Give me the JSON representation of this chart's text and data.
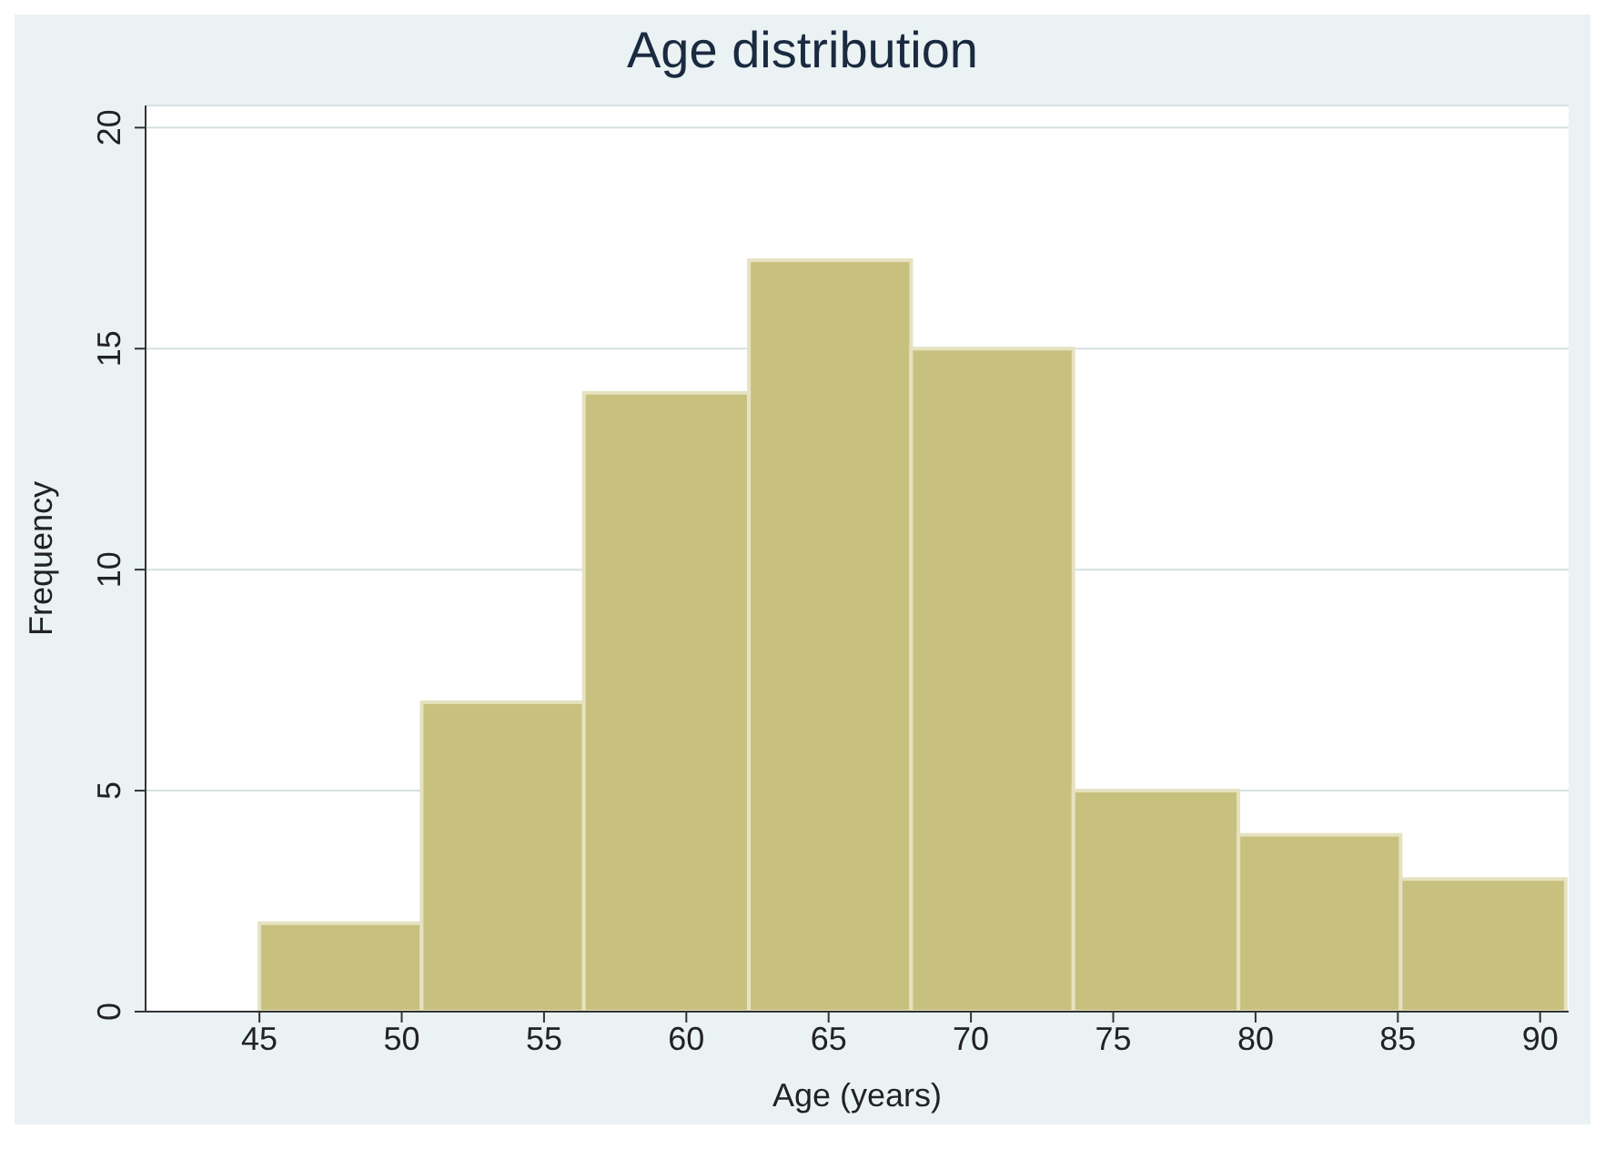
{
  "chart_data": {
    "type": "histogram",
    "title": "Age distribution",
    "xlabel": "Age (years)",
    "ylabel": "Frequency",
    "bins": [
      45,
      50.7,
      56.4,
      62.2,
      67.9,
      73.6,
      79.4,
      85.1,
      90.9
    ],
    "values": [
      2,
      7,
      14,
      17,
      15,
      5,
      4,
      3
    ],
    "color": "#c8c07e",
    "xlim": [
      41,
      91
    ],
    "xticks": [
      45,
      50,
      55,
      60,
      65,
      70,
      75,
      80,
      85,
      90
    ],
    "ylim": [
      0,
      20.5
    ],
    "yticks": [
      0,
      5,
      10,
      15,
      20
    ],
    "grid": "y"
  }
}
